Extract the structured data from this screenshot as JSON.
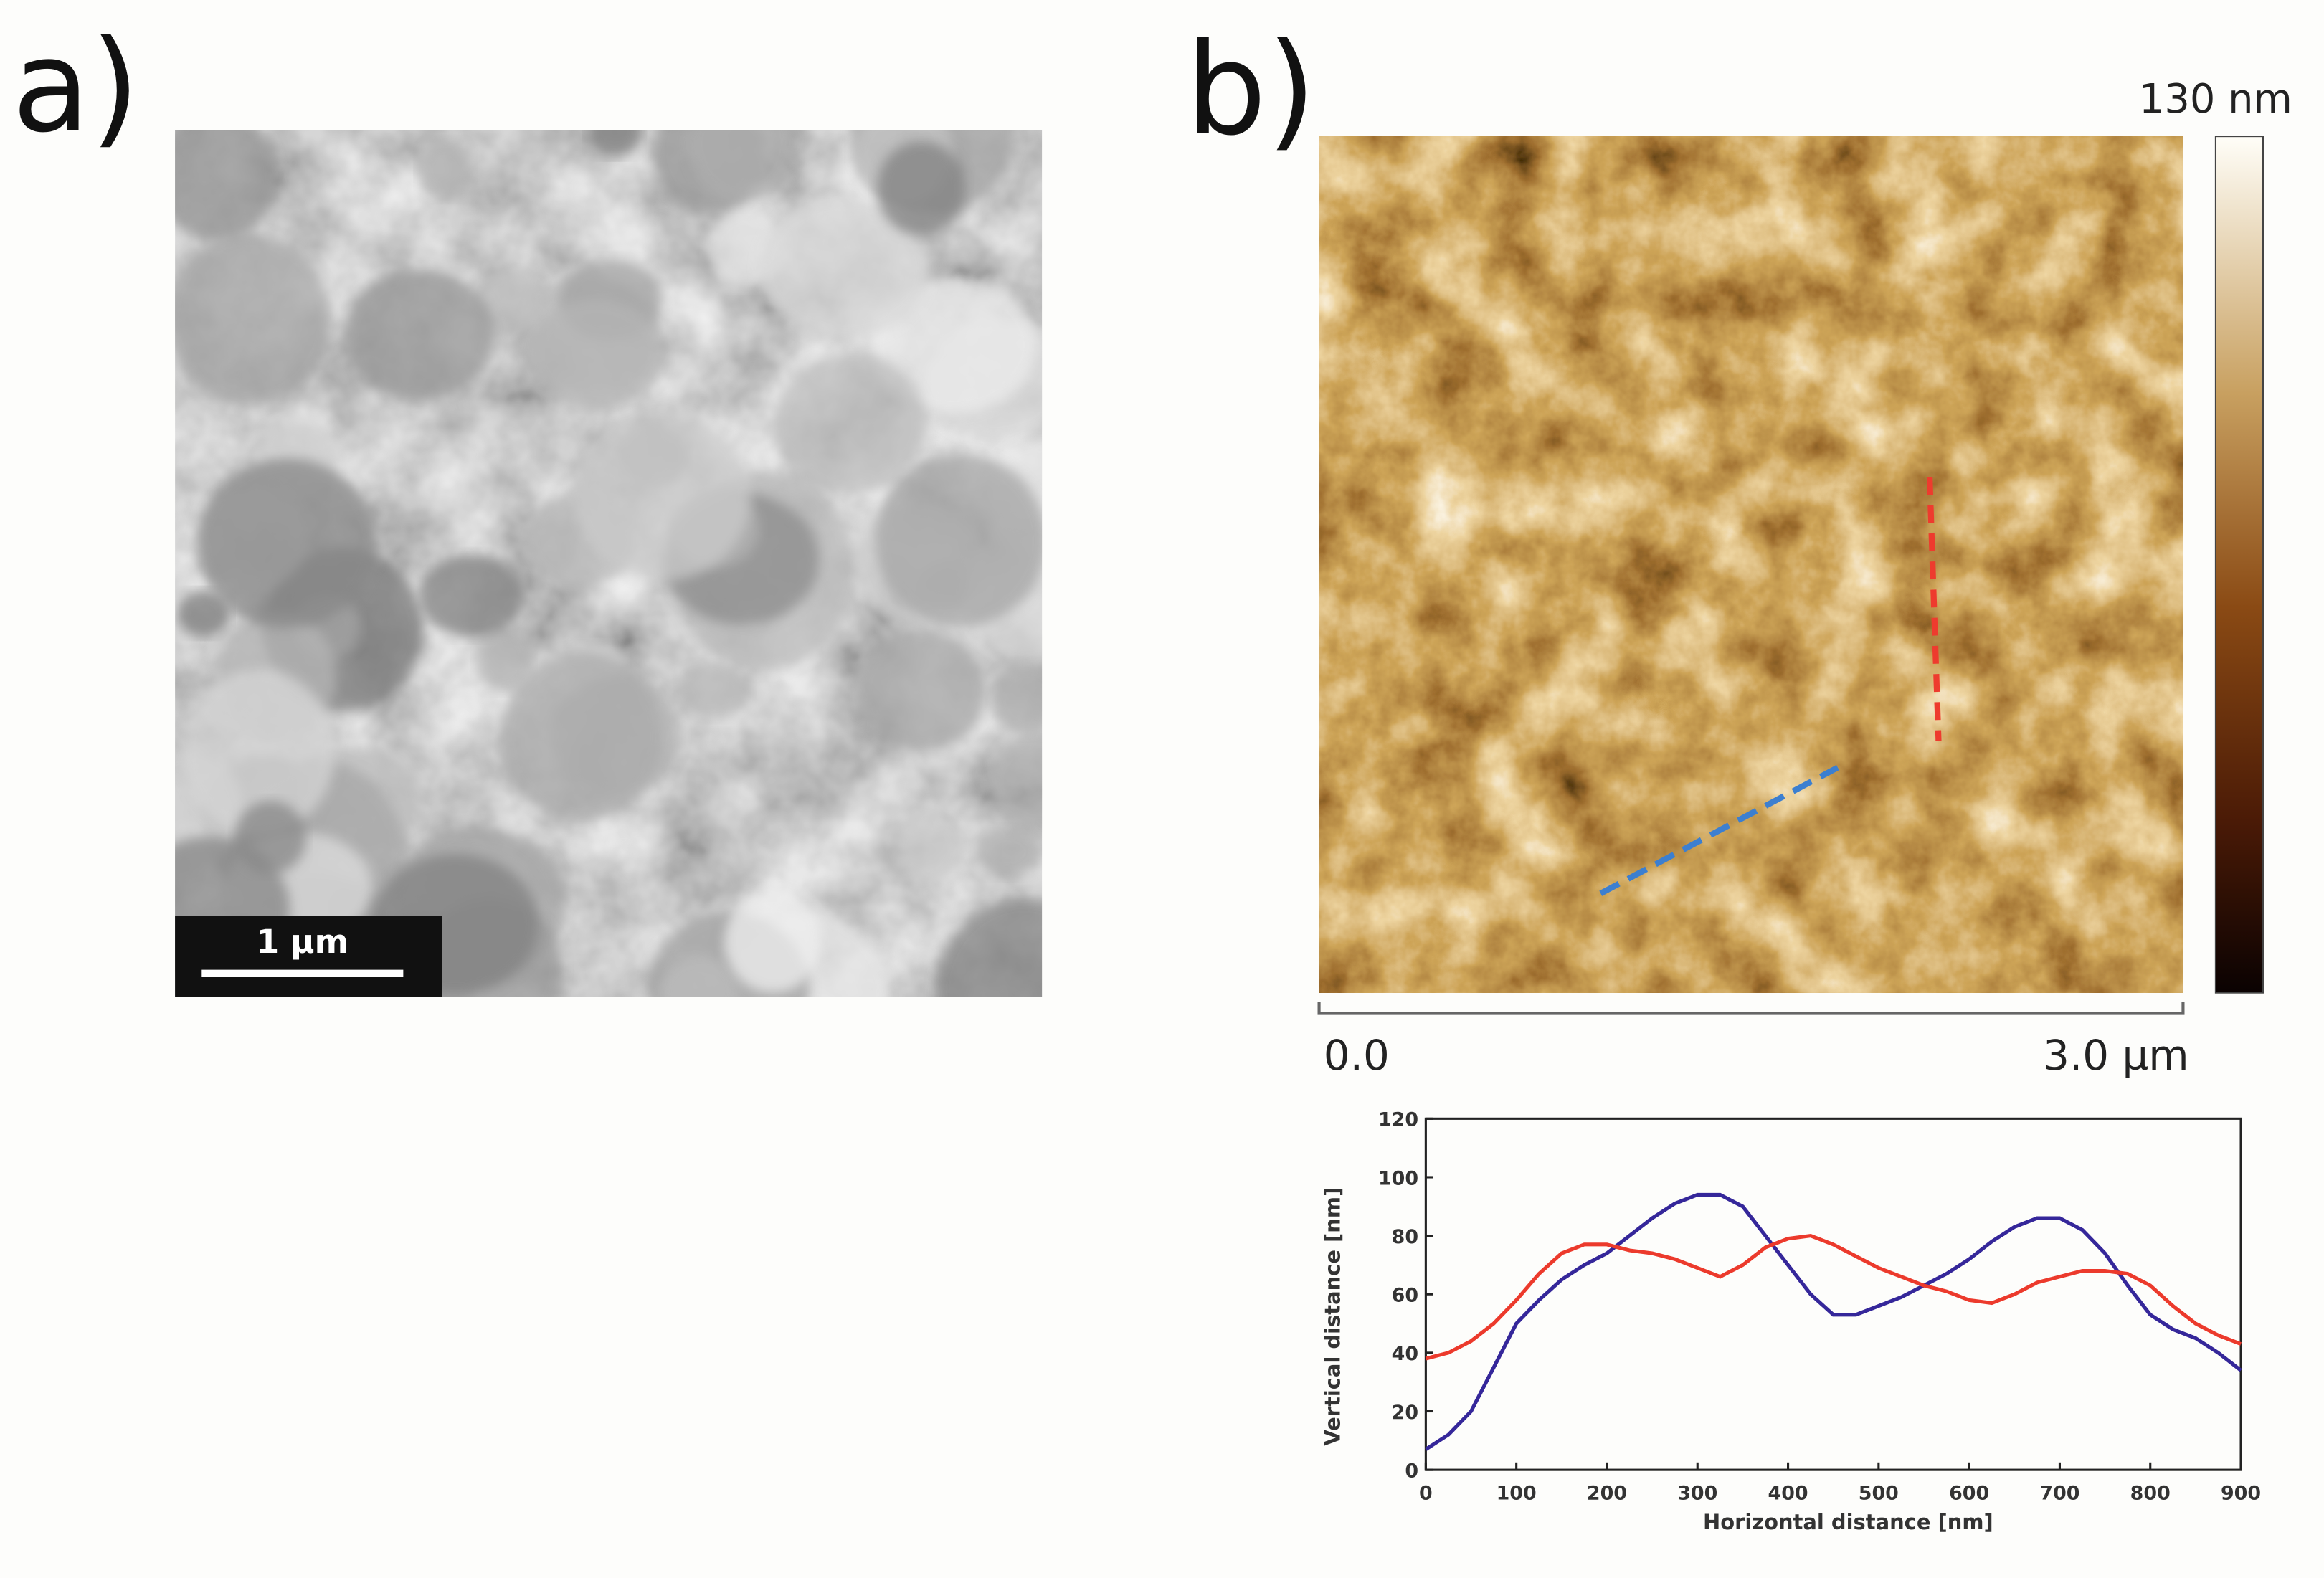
{
  "panel_a": {
    "label": "a)",
    "scale_bar": "1 µm"
  },
  "panel_b": {
    "label": "b)",
    "colorbar_max": "130 nm",
    "scan_start": "0.0",
    "scan_end": "3.0 µm"
  },
  "chart_data": {
    "type": "line",
    "x_label": "Horizontal distance [nm]",
    "y_label": "Vertical distance [nm]",
    "x": [
      0,
      25,
      50,
      75,
      100,
      125,
      150,
      175,
      200,
      225,
      250,
      275,
      300,
      325,
      350,
      375,
      400,
      425,
      450,
      475,
      500,
      525,
      550,
      575,
      600,
      625,
      650,
      675,
      700,
      725,
      750,
      775,
      800,
      825,
      850,
      875,
      900
    ],
    "series": [
      {
        "name": "blue",
        "color": "#35279a",
        "values": [
          7,
          12,
          20,
          35,
          50,
          58,
          65,
          70,
          74,
          80,
          86,
          91,
          94,
          94,
          90,
          80,
          70,
          60,
          53,
          53,
          56,
          59,
          63,
          67,
          72,
          78,
          83,
          86,
          86,
          82,
          74,
          63,
          53,
          48,
          45,
          40,
          34
        ]
      },
      {
        "name": "red",
        "color": "#ec3a2c",
        "values": [
          38,
          40,
          44,
          50,
          58,
          67,
          74,
          77,
          77,
          75,
          74,
          72,
          69,
          66,
          70,
          76,
          79,
          80,
          77,
          73,
          69,
          66,
          63,
          61,
          58,
          57,
          60,
          64,
          66,
          68,
          68,
          67,
          63,
          56,
          50,
          46,
          43
        ]
      }
    ],
    "xlim": [
      0,
      900
    ],
    "ylim": [
      0,
      120
    ],
    "xticks": [
      0,
      100,
      200,
      300,
      400,
      500,
      600,
      700,
      800,
      900
    ],
    "yticks": [
      0,
      20,
      40,
      60,
      80,
      100,
      120
    ]
  }
}
